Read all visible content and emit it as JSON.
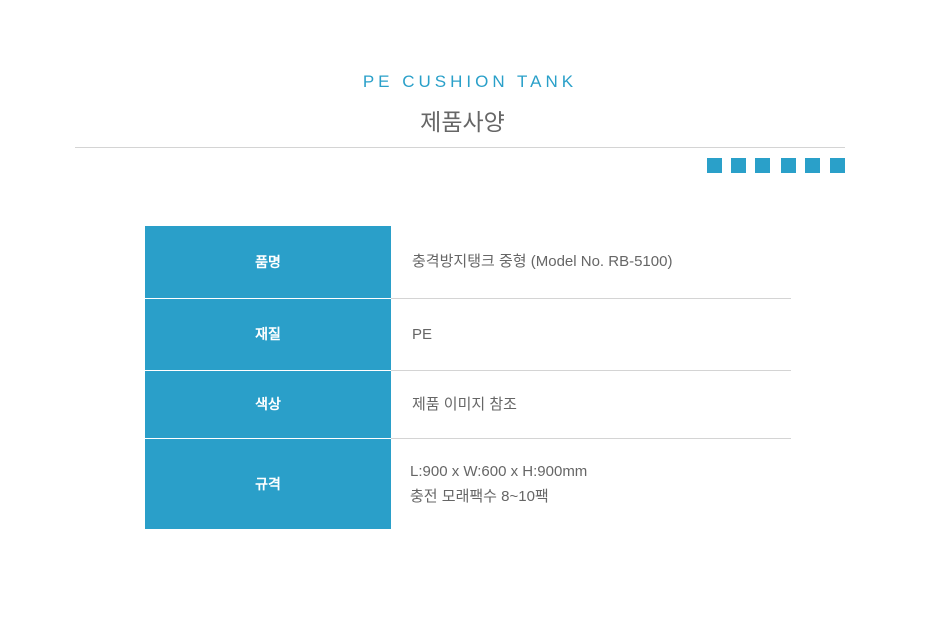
{
  "header": {
    "subtitle": "PE CUSHION TANK",
    "title": "제품사양"
  },
  "colors": {
    "accent": "#2aa0c9",
    "text": "#666666"
  },
  "specs": [
    {
      "label": "품명",
      "value": "충격방지탱크 중형 (Model No. RB-5100)"
    },
    {
      "label": "재질",
      "value": "PE"
    },
    {
      "label": "색상",
      "value": "제품 이미지 참조"
    },
    {
      "label": "규격",
      "value": "L:900 x W:600 x H:900mm",
      "value2": "충전 모래팩수 8~10팩"
    }
  ]
}
